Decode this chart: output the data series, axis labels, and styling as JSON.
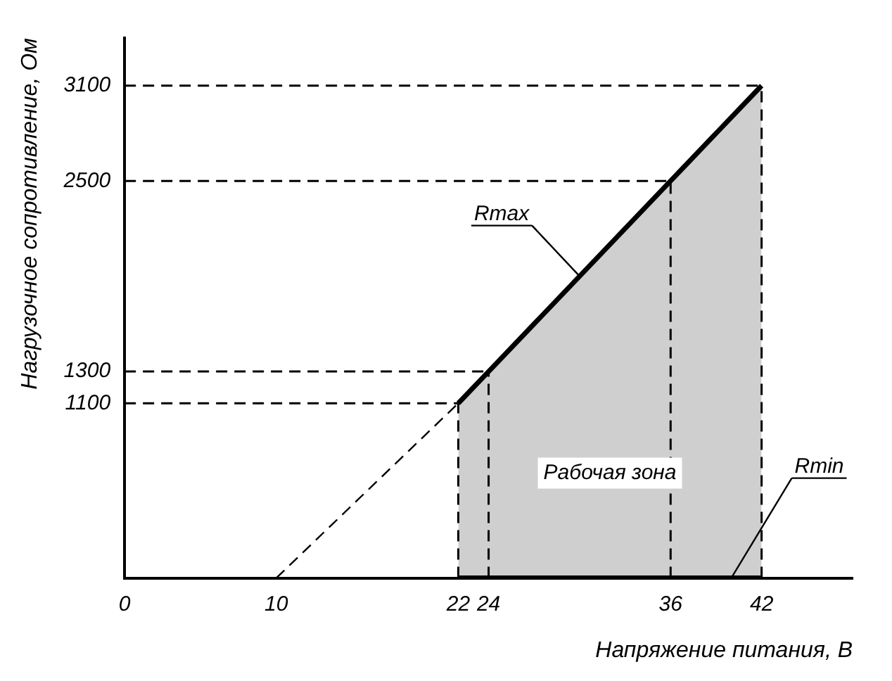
{
  "chart_data": {
    "type": "line",
    "xlabel": "Напряжение питания, В",
    "ylabel": "Нагрузочное сопротивление, Ом",
    "xlim": [
      0,
      48
    ],
    "ylim": [
      0,
      3400
    ],
    "xticks": [
      0,
      10,
      22,
      24,
      36,
      42
    ],
    "yticks": [
      1100,
      1300,
      2500,
      3100
    ],
    "series": [
      {
        "type": "area",
        "color": "#000000",
        "x": [
          22,
          24,
          36,
          42
        ],
        "values": [
          1100,
          1300,
          2500,
          3100
        ]
      },
      {
        "type": "line",
        "color": "#000000",
        "x": [
          22,
          42
        ],
        "values": [
          0,
          0
        ]
      },
      {
        "type": "line",
        "color": "#000000",
        "line_style": "dashed",
        "x": [
          10,
          22
        ],
        "values": [
          0,
          1100
        ]
      }
    ],
    "ref_lines": [
      {
        "axis": "y",
        "value": 1100,
        "label": null,
        "line_style": "dashed"
      },
      {
        "axis": "y",
        "value": 1300,
        "label": null,
        "line_style": "dashed"
      },
      {
        "axis": "y",
        "value": 2500,
        "label": null,
        "line_style": "dashed"
      },
      {
        "axis": "y",
        "value": 3100,
        "label": null,
        "line_style": "dashed"
      },
      {
        "axis": "x",
        "value": 22,
        "label": null,
        "line_style": "dashed"
      },
      {
        "axis": "x",
        "value": 24,
        "label": null,
        "line_style": "dashed"
      },
      {
        "axis": "x",
        "value": 36,
        "label": null,
        "line_style": "dashed"
      },
      {
        "axis": "x",
        "value": 42,
        "label": null,
        "line_style": "dashed"
      }
    ],
    "annotations": [
      {
        "text": "Rmax",
        "x": 30,
        "y": 1900
      },
      {
        "text": "Rmin",
        "x": 40,
        "y": 0
      },
      "Рабочая зона"
    ],
    "grid": false,
    "legend": false,
    "marker": "none",
    "line_style": "solid"
  }
}
